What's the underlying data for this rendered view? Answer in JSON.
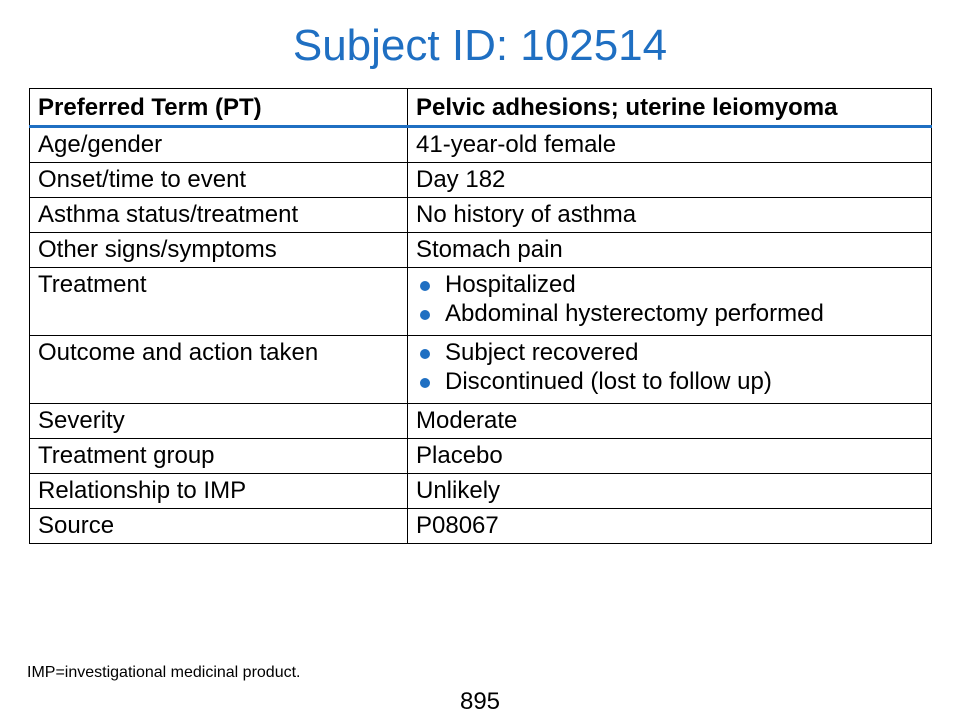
{
  "title": "Subject ID: 102514",
  "table": {
    "header": [
      "Preferred Term (PT)",
      "Pelvic adhesions; uterine leiomyoma"
    ],
    "rows": [
      {
        "label": "Age/gender",
        "value": "41-year-old female"
      },
      {
        "label": "Onset/time to event",
        "value": "Day 182"
      },
      {
        "label": "Asthma status/treatment",
        "value": "No history of asthma"
      },
      {
        "label": "Other signs/symptoms",
        "value": "Stomach pain"
      },
      {
        "label": "Treatment",
        "bullets": [
          "Hospitalized",
          "Abdominal hysterectomy performed"
        ]
      },
      {
        "label": "Outcome and action taken",
        "bullets": [
          "Subject recovered",
          "Discontinued (lost to follow up)"
        ]
      },
      {
        "label": "Severity",
        "value": "Moderate"
      },
      {
        "label": "Treatment group",
        "value": "Placebo"
      },
      {
        "label": "Relationship to IMP",
        "value": "Unlikely"
      },
      {
        "label": "Source",
        "value": "P08067"
      }
    ]
  },
  "footnote": "IMP=investigational medicinal product.",
  "page_number": "895",
  "colors": {
    "accent": "#1f6fc2",
    "text": "#000000"
  }
}
